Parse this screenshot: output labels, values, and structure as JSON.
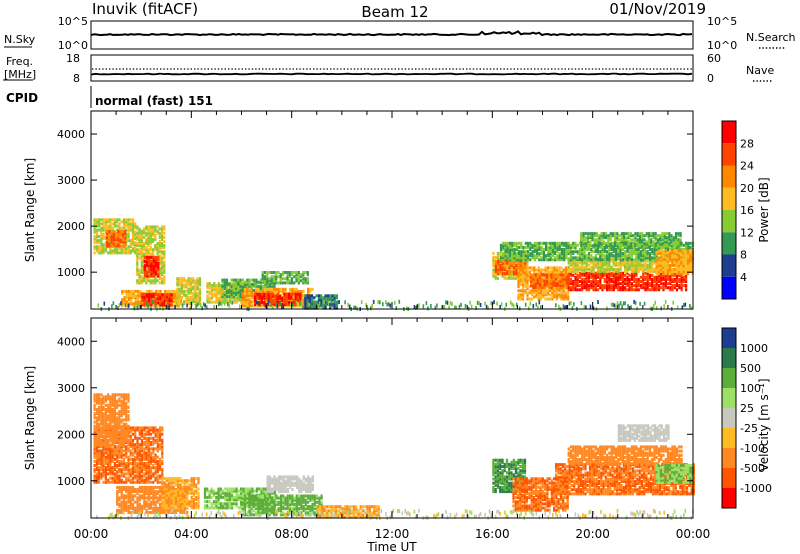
{
  "header": {
    "station": "Inuvik (fitACF)",
    "beam": "Beam 12",
    "date": "01/Nov/2019"
  },
  "nsky_panel": {
    "left_label": "N.Sky",
    "left_ticks": [
      "10^5",
      "10^0"
    ],
    "right_ticks": [
      "10^5",
      "10^0"
    ],
    "right_label": "N.Search"
  },
  "freq_panel": {
    "left_label_1": "Freq.",
    "left_label_2": "[MHz]",
    "left_ticks": [
      "18",
      "8"
    ],
    "right_ticks": [
      "60",
      "0"
    ],
    "right_label": "Nave"
  },
  "cpid": {
    "label": "CPID",
    "value": "normal (fast) 151"
  },
  "chart_data": [
    {
      "type": "heatmap",
      "name": "power",
      "ylabel": "Slant Range [km]",
      "ylim": [
        200,
        4500
      ],
      "y_ticks": [
        "1000",
        "2000",
        "3000",
        "4000"
      ],
      "xlim_hours": [
        0,
        24
      ],
      "x_ticks": [
        "00:00",
        "04:00",
        "08:00",
        "12:00",
        "16:00",
        "20:00",
        "00:00"
      ],
      "xlabel": "Time UT",
      "colorbar_label": "Power [dB]",
      "colorbar_ticks": [
        "28",
        "24",
        "20",
        "16",
        "12",
        "8",
        "4"
      ],
      "colorbar_colors": [
        "#ff0000",
        "#ff4400",
        "#ff8800",
        "#ffbb22",
        "#88cc33",
        "#339955",
        "#1e3d8f",
        "#0000ff"
      ],
      "regions": [
        {
          "t0": 0.1,
          "t1": 1.8,
          "r0": 1450,
          "r1": 2200,
          "v": 16
        },
        {
          "t0": 0.6,
          "t1": 1.4,
          "r0": 1600,
          "r1": 1950,
          "v": 24
        },
        {
          "t0": 1.8,
          "t1": 2.9,
          "r0": 800,
          "r1": 2050,
          "v": 16
        },
        {
          "t0": 2.1,
          "t1": 2.7,
          "r0": 950,
          "r1": 1400,
          "v": 28
        },
        {
          "t0": 1.2,
          "t1": 3.6,
          "r0": 300,
          "r1": 650,
          "v": 20
        },
        {
          "t0": 2.0,
          "t1": 3.2,
          "r0": 320,
          "r1": 550,
          "v": 28
        },
        {
          "t0": 3.4,
          "t1": 4.3,
          "r0": 350,
          "r1": 900,
          "v": 16
        },
        {
          "t0": 4.6,
          "t1": 6.2,
          "r0": 380,
          "r1": 800,
          "v": 16
        },
        {
          "t0": 5.2,
          "t1": 7.3,
          "r0": 500,
          "r1": 900,
          "v": 12
        },
        {
          "t0": 6.0,
          "t1": 8.8,
          "r0": 300,
          "r1": 700,
          "v": 20
        },
        {
          "t0": 6.5,
          "t1": 8.3,
          "r0": 330,
          "r1": 600,
          "v": 28
        },
        {
          "t0": 6.8,
          "t1": 8.6,
          "r0": 800,
          "r1": 1050,
          "v": 12
        },
        {
          "t0": 8.5,
          "t1": 9.8,
          "r0": 250,
          "r1": 550,
          "v": 8
        },
        {
          "t0": 16.0,
          "t1": 17.4,
          "r0": 900,
          "r1": 1450,
          "v": 16
        },
        {
          "t0": 16.1,
          "t1": 17.3,
          "r0": 1000,
          "r1": 1300,
          "v": 24
        },
        {
          "t0": 17.0,
          "t1": 19.0,
          "r0": 450,
          "r1": 1150,
          "v": 20
        },
        {
          "t0": 17.5,
          "t1": 19.0,
          "r0": 700,
          "r1": 1000,
          "v": 24
        },
        {
          "t0": 19.0,
          "t1": 23.7,
          "r0": 650,
          "r1": 1050,
          "v": 28
        },
        {
          "t0": 19.0,
          "t1": 24.0,
          "r0": 1050,
          "r1": 1350,
          "v": 16
        },
        {
          "t0": 16.3,
          "t1": 24.0,
          "r0": 1300,
          "r1": 1700,
          "v": 12
        },
        {
          "t0": 19.5,
          "t1": 23.5,
          "r0": 1600,
          "r1": 1900,
          "v": 12
        },
        {
          "t0": 22.5,
          "t1": 24.0,
          "r0": 1000,
          "r1": 1500,
          "v": 20
        }
      ]
    },
    {
      "type": "heatmap",
      "name": "velocity",
      "ylabel": "Slant Range [km]",
      "ylim": [
        200,
        4500
      ],
      "y_ticks": [
        "1000",
        "2000",
        "3000",
        "4000"
      ],
      "xlim_hours": [
        0,
        24
      ],
      "x_ticks": [
        "00:00",
        "04:00",
        "08:00",
        "12:00",
        "16:00",
        "20:00",
        "00:00"
      ],
      "xlabel": "Time UT",
      "colorbar_label": "Velocity [m s⁻¹]",
      "colorbar_ticks": [
        "1000",
        "500",
        "100",
        "25",
        "-25",
        "-100",
        "-500",
        "-1000"
      ],
      "colorbar_colors": [
        "#1e3d8f",
        "#2a7a4a",
        "#5cae3a",
        "#9ee066",
        "#c8c8c0",
        "#ffbb22",
        "#ff8822",
        "#ff5500",
        "#ff0000"
      ],
      "regions": [
        {
          "t0": 0.1,
          "t1": 2.8,
          "r0": 1000,
          "r1": 2200,
          "v": -300
        },
        {
          "t0": 0.1,
          "t1": 1.5,
          "r0": 1800,
          "r1": 2900,
          "v": -200
        },
        {
          "t0": 1.0,
          "t1": 3.8,
          "r0": 350,
          "r1": 900,
          "v": -150
        },
        {
          "t0": 2.8,
          "t1": 4.3,
          "r0": 450,
          "r1": 1100,
          "v": -60
        },
        {
          "t0": 4.5,
          "t1": 7.3,
          "r0": 450,
          "r1": 900,
          "v": 60
        },
        {
          "t0": 6.0,
          "t1": 9.2,
          "r0": 300,
          "r1": 750,
          "v": 80
        },
        {
          "t0": 7.0,
          "t1": 8.8,
          "r0": 800,
          "r1": 1150,
          "v": 0
        },
        {
          "t0": 9.0,
          "t1": 11.5,
          "r0": 250,
          "r1": 500,
          "v": -60
        },
        {
          "t0": 16.0,
          "t1": 17.3,
          "r0": 800,
          "r1": 1500,
          "v": 300
        },
        {
          "t0": 16.8,
          "t1": 19.0,
          "r0": 400,
          "r1": 1100,
          "v": -300
        },
        {
          "t0": 18.5,
          "t1": 24.0,
          "r0": 750,
          "r1": 1400,
          "v": -300
        },
        {
          "t0": 19.0,
          "t1": 23.5,
          "r0": 1400,
          "r1": 1800,
          "v": -150
        },
        {
          "t0": 21.0,
          "t1": 23.0,
          "r0": 1900,
          "r1": 2250,
          "v": 0
        },
        {
          "t0": 22.5,
          "t1": 24.0,
          "r0": 1000,
          "r1": 1400,
          "v": 60
        }
      ]
    }
  ]
}
